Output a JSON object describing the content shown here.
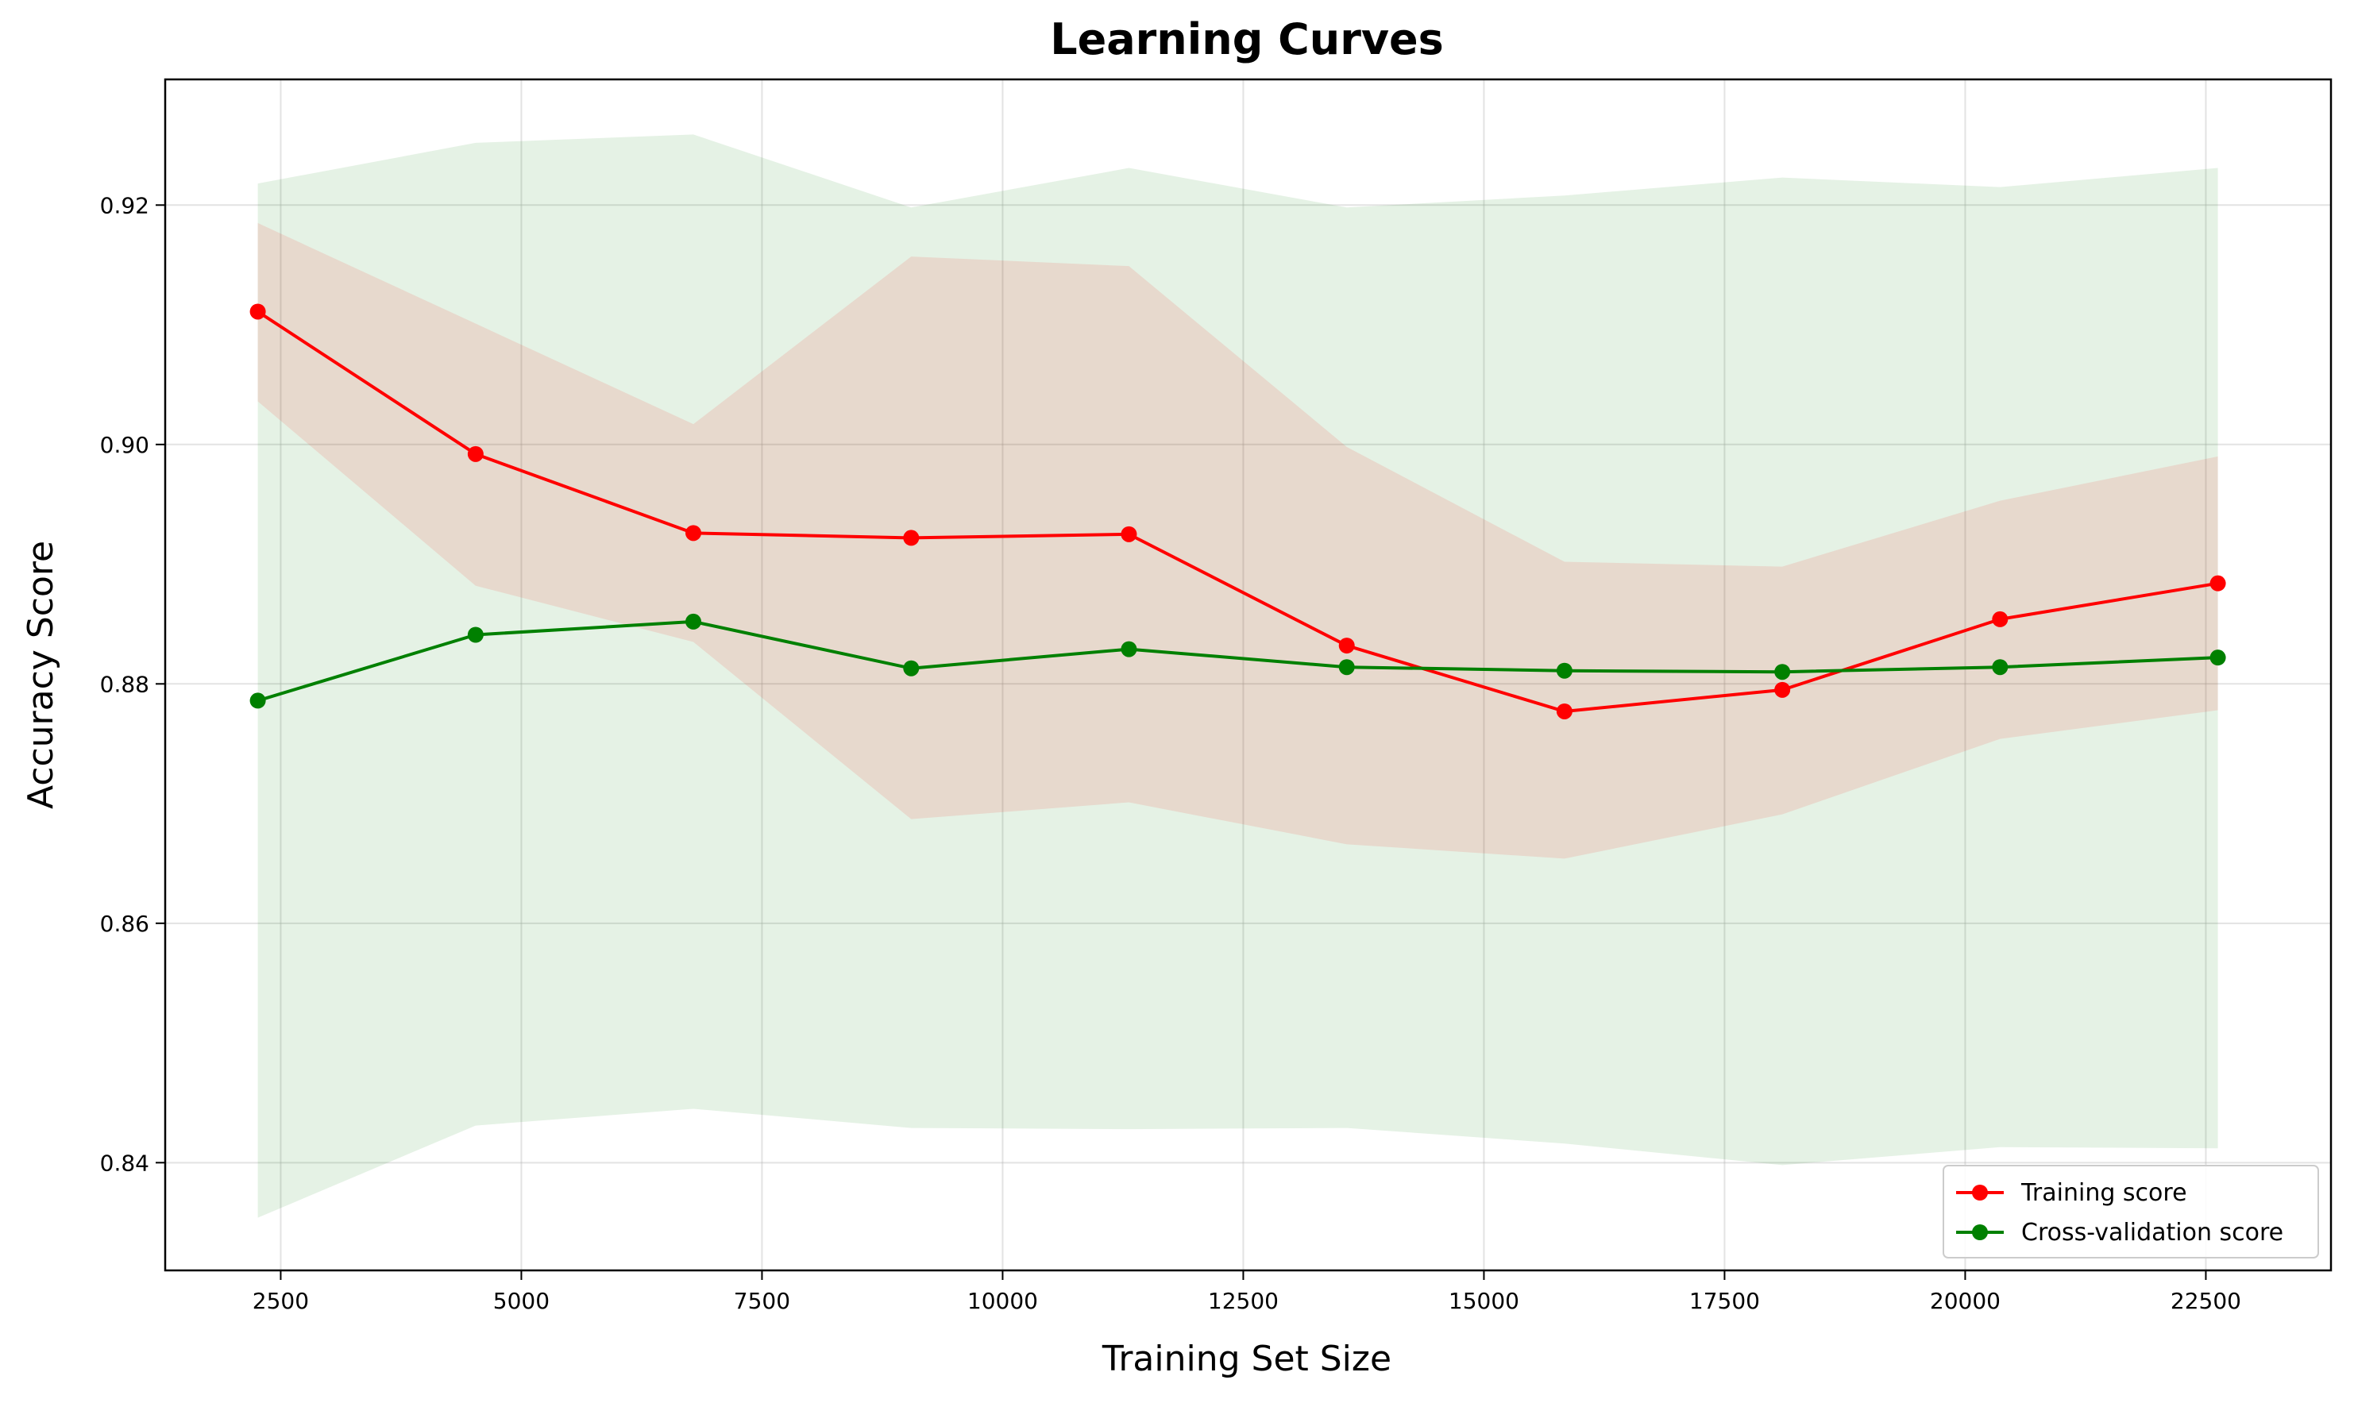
{
  "chart_data": {
    "type": "line",
    "title": "Learning Curves",
    "xlabel": "Training Set Size",
    "ylabel": "Accuracy Score",
    "xlim": [
      1300,
      23800
    ],
    "ylim": [
      0.831,
      0.9305
    ],
    "xticks": [
      2500,
      5000,
      7500,
      10000,
      12500,
      15000,
      17500,
      20000,
      22500
    ],
    "yticks": [
      0.84,
      0.86,
      0.88,
      0.9,
      0.92
    ],
    "ytick_labels": [
      "0.84",
      "0.86",
      "0.88",
      "0.90",
      "0.92"
    ],
    "grid": true,
    "legend_position": "lower-right",
    "x": [
      2262,
      4525,
      6787,
      9050,
      11312,
      13575,
      15837,
      18100,
      20362,
      22625
    ],
    "series": [
      {
        "name": "Training score",
        "color": "#ff0000",
        "values": [
          0.9111,
          0.8992,
          0.8926,
          0.8922,
          0.8925,
          0.8832,
          0.8777,
          0.8795,
          0.8854,
          0.8884
        ],
        "band_upper": [
          0.9185,
          0.9101,
          0.9017,
          0.9157,
          0.9149,
          0.8998,
          0.8902,
          0.8898,
          0.8953,
          0.899
        ],
        "band_lower": [
          0.9036,
          0.8882,
          0.8835,
          0.8687,
          0.8701,
          0.8666,
          0.8654,
          0.8691,
          0.8754,
          0.8778
        ]
      },
      {
        "name": "Cross-validation score",
        "color": "#008000",
        "values": [
          0.8786,
          0.8841,
          0.8852,
          0.8813,
          0.8829,
          0.8814,
          0.8811,
          0.881,
          0.8814,
          0.8822
        ],
        "band_upper": [
          0.9218,
          0.9252,
          0.9259,
          0.9198,
          0.9231,
          0.9198,
          0.9208,
          0.9223,
          0.9215,
          0.9231
        ],
        "band_lower": [
          0.8354,
          0.8431,
          0.8445,
          0.8429,
          0.8428,
          0.8429,
          0.8416,
          0.8398,
          0.8413,
          0.8412
        ]
      }
    ]
  }
}
